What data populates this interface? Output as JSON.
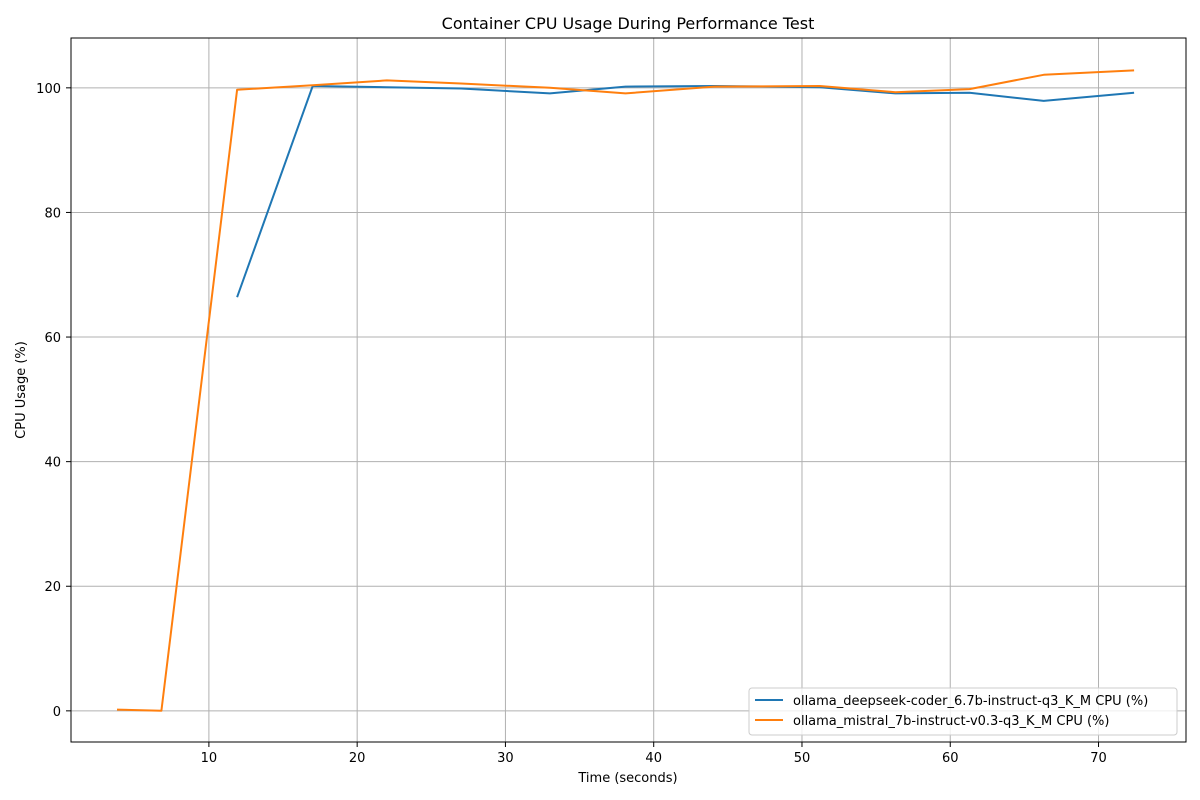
{
  "chart_data": {
    "type": "line",
    "title": "Container CPU Usage During Performance Test",
    "xlabel": "Time (seconds)",
    "ylabel": "CPU Usage (%)",
    "xlim": [
      0.7,
      75.9
    ],
    "ylim": [
      -5,
      108
    ],
    "xticks": [
      10,
      20,
      30,
      40,
      50,
      60,
      70
    ],
    "yticks": [
      0,
      20,
      40,
      60,
      80,
      100
    ],
    "grid": true,
    "legend_position": "lower-right",
    "series": [
      {
        "name": "ollama_deepseek-coder_6.7b-instruct-q3_K_M CPU (%)",
        "color": "#1f77b4",
        "points": [
          [
            11.9,
            66.4
          ],
          [
            17.0,
            100.3
          ],
          [
            22.0,
            100.1
          ],
          [
            27.0,
            99.9
          ],
          [
            33.0,
            99.1
          ],
          [
            38.1,
            100.2
          ],
          [
            44.1,
            100.3
          ],
          [
            51.2,
            100.1
          ],
          [
            56.3,
            99.1
          ],
          [
            61.3,
            99.2
          ],
          [
            66.3,
            97.9
          ],
          [
            72.4,
            99.2
          ]
        ]
      },
      {
        "name": "ollama_mistral_7b-instruct-v0.3-q3_K_M CPU (%)",
        "color": "#ff7f0e",
        "points": [
          [
            3.8,
            0.2
          ],
          [
            6.8,
            0.0
          ],
          [
            11.9,
            99.7
          ],
          [
            17.0,
            100.4
          ],
          [
            22.0,
            101.2
          ],
          [
            27.0,
            100.7
          ],
          [
            33.0,
            100.0
          ],
          [
            38.1,
            99.1
          ],
          [
            44.1,
            100.2
          ],
          [
            51.2,
            100.3
          ],
          [
            56.3,
            99.3
          ],
          [
            61.3,
            99.8
          ],
          [
            66.3,
            102.1
          ],
          [
            72.4,
            102.8
          ]
        ]
      }
    ]
  }
}
